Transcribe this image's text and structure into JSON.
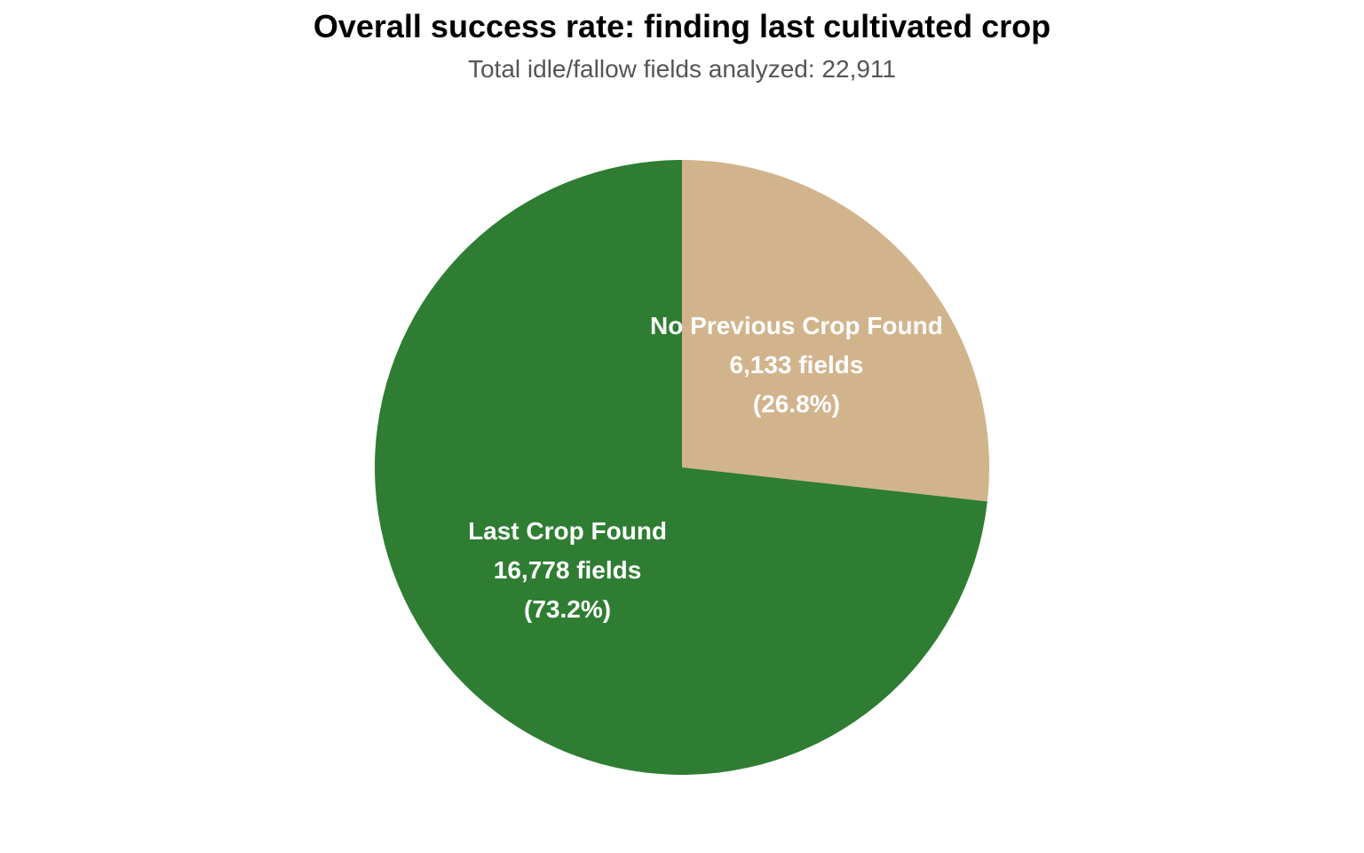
{
  "chart_data": {
    "type": "pie",
    "title": "Overall success rate: finding last cultivated crop",
    "subtitle": "Total idle/fallow fields analyzed: 22,911",
    "slices": [
      {
        "label": "No Previous Crop Found",
        "count_text": "6,133 fields",
        "pct_text": "(26.8%)",
        "value": 6133,
        "percent": 26.8,
        "color": "#D2B48C"
      },
      {
        "label": "Last Crop Found",
        "count_text": "16,778 fields",
        "pct_text": "(73.2%)",
        "value": 16778,
        "percent": 73.2,
        "color": "#2E7D32"
      }
    ],
    "total": 22911,
    "start": "12 o'clock",
    "direction": "clockwise",
    "legend": "none"
  }
}
